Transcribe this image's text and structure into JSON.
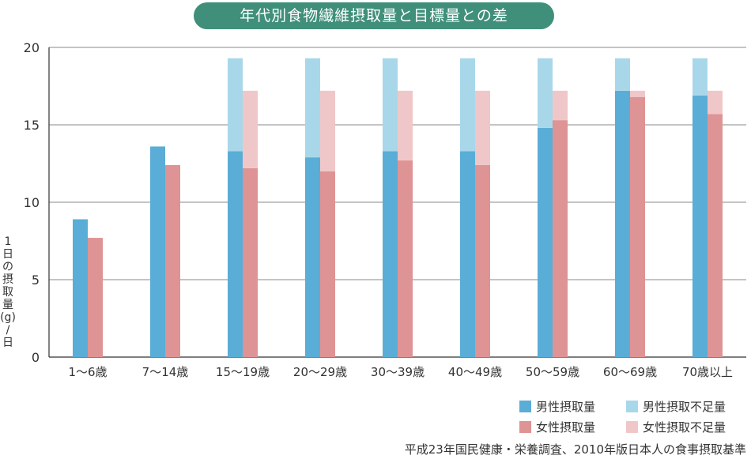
{
  "chart_title": "年代別食物繊維摂取量と目標量との差",
  "y_axis_label_chars": [
    "1",
    "日",
    "の",
    "摂",
    "取",
    "量",
    "(g)",
    "/",
    "日"
  ],
  "legend": [
    {
      "label": "男性摂取量",
      "color": "#5aadd6"
    },
    {
      "label": "男性摂取不足量",
      "color": "#a9d7ea"
    },
    {
      "label": "女性摂取量",
      "color": "#de9394"
    },
    {
      "label": "女性摂取不足量",
      "color": "#f0c7c8"
    }
  ],
  "source": "平成23年国民健康・栄養調査、2010年版日本人の食事摂取基準",
  "chart_data": {
    "type": "bar",
    "title": "年代別食物繊維摂取量と目標量との差",
    "ylabel": "1日の摂取量(g)/日",
    "ylim": [
      0,
      20
    ],
    "yticks": [
      0,
      5,
      10,
      15,
      20
    ],
    "grid": true,
    "categories": [
      "1〜6歳",
      "7〜14歳",
      "15〜19歳",
      "20〜29歳",
      "30〜39歳",
      "40〜49歳",
      "50〜59歳",
      "60〜69歳",
      "70歳以上"
    ],
    "series": [
      {
        "name": "男性摂取量",
        "color": "#5aadd6",
        "values": [
          8.9,
          13.6,
          13.3,
          12.9,
          13.3,
          13.3,
          14.8,
          17.2,
          16.9
        ]
      },
      {
        "name": "男性摂取不足量",
        "color": "#a9d7ea",
        "values": [
          0,
          0,
          6.0,
          6.4,
          6.0,
          6.0,
          4.5,
          2.1,
          2.4
        ]
      },
      {
        "name": "女性摂取量",
        "color": "#de9394",
        "values": [
          7.7,
          12.4,
          12.2,
          12.0,
          12.7,
          12.4,
          15.3,
          16.8,
          15.7
        ]
      },
      {
        "name": "女性摂取不足量",
        "color": "#f0c7c8",
        "values": [
          0,
          0,
          5.0,
          5.2,
          4.5,
          4.8,
          1.9,
          0.4,
          1.5
        ]
      }
    ],
    "stacking": [
      [
        "男性摂取量",
        "男性摂取不足量"
      ],
      [
        "女性摂取量",
        "女性摂取不足量"
      ]
    ],
    "legend_position": "bottom-right"
  }
}
